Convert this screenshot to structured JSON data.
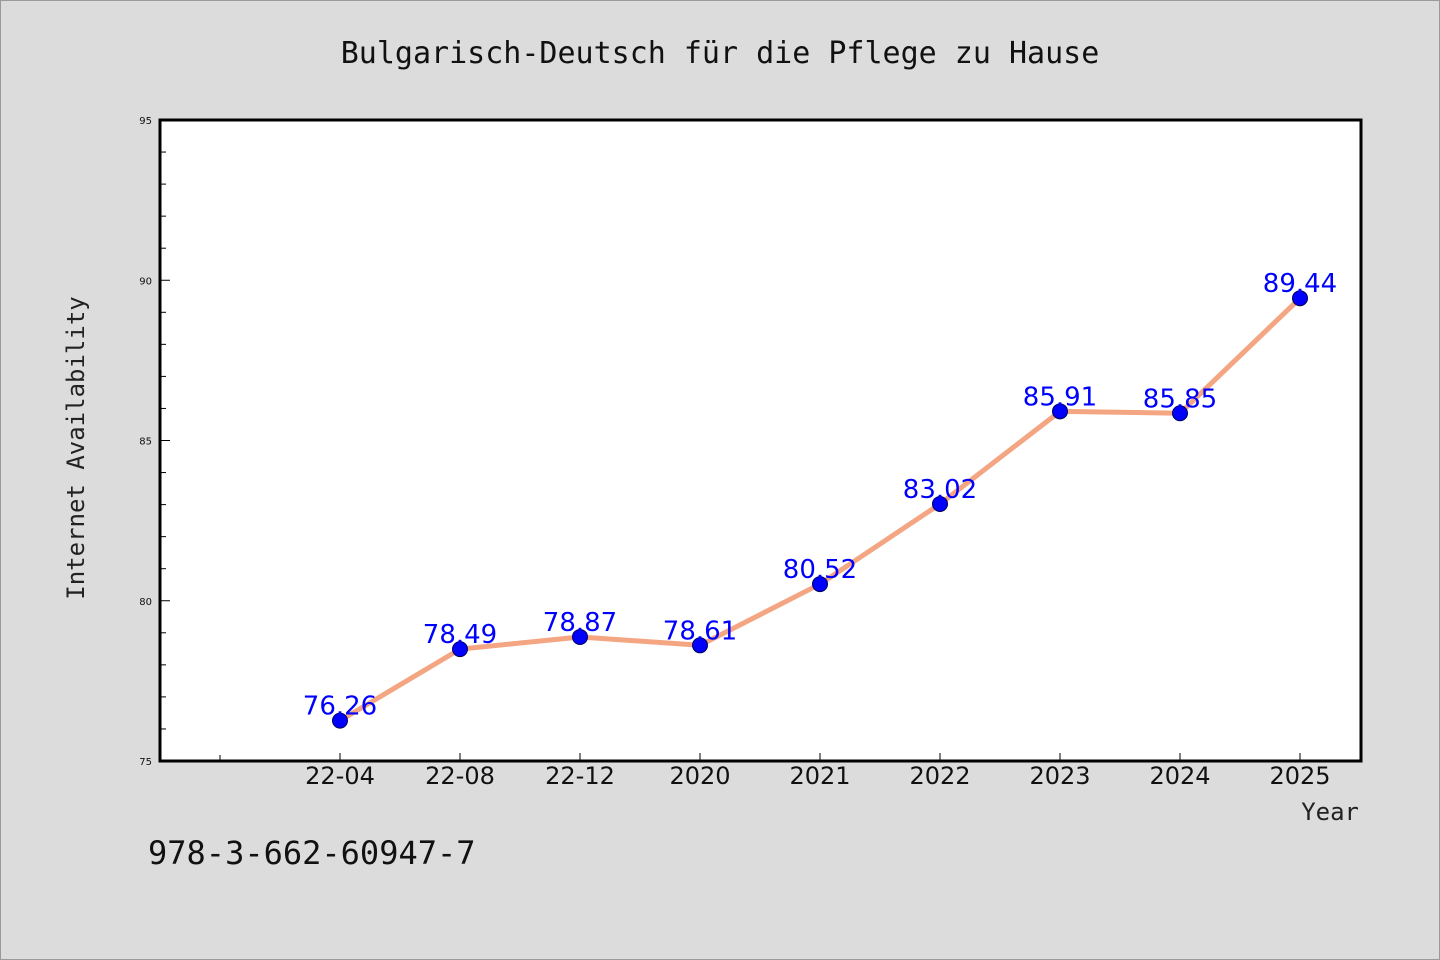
{
  "chart_data": {
    "type": "line",
    "title": "Bulgarisch-Deutsch für die Pflege zu Hause",
    "xlabel": "Year",
    "ylabel": "Internet Availability",
    "categories": [
      "22-04",
      "22-08",
      "22-12",
      "2020",
      "2021",
      "2022",
      "2023",
      "2024",
      "2025"
    ],
    "series": [
      {
        "values": [
          76.26,
          78.49,
          78.87,
          78.61,
          80.52,
          83.02,
          85.91,
          85.85,
          89.44
        ],
        "data_labels": [
          "76.26",
          "78.49",
          "78.87",
          "78.61",
          "80.52",
          "83.02",
          "85.91",
          "85.85",
          "89.44"
        ],
        "line_color": "#f4a582",
        "marker_color": "#0000ff"
      }
    ],
    "ylim": [
      75,
      95
    ],
    "yticks": [
      "75",
      "80",
      "85",
      "90",
      "95"
    ],
    "grid": false,
    "legend": "none"
  },
  "footer": {
    "isbn": "978-3-662-60947-7"
  },
  "colors": {
    "background": "#dcdcdc",
    "plot_area": "#ffffff",
    "label_text": "#0000ff"
  }
}
